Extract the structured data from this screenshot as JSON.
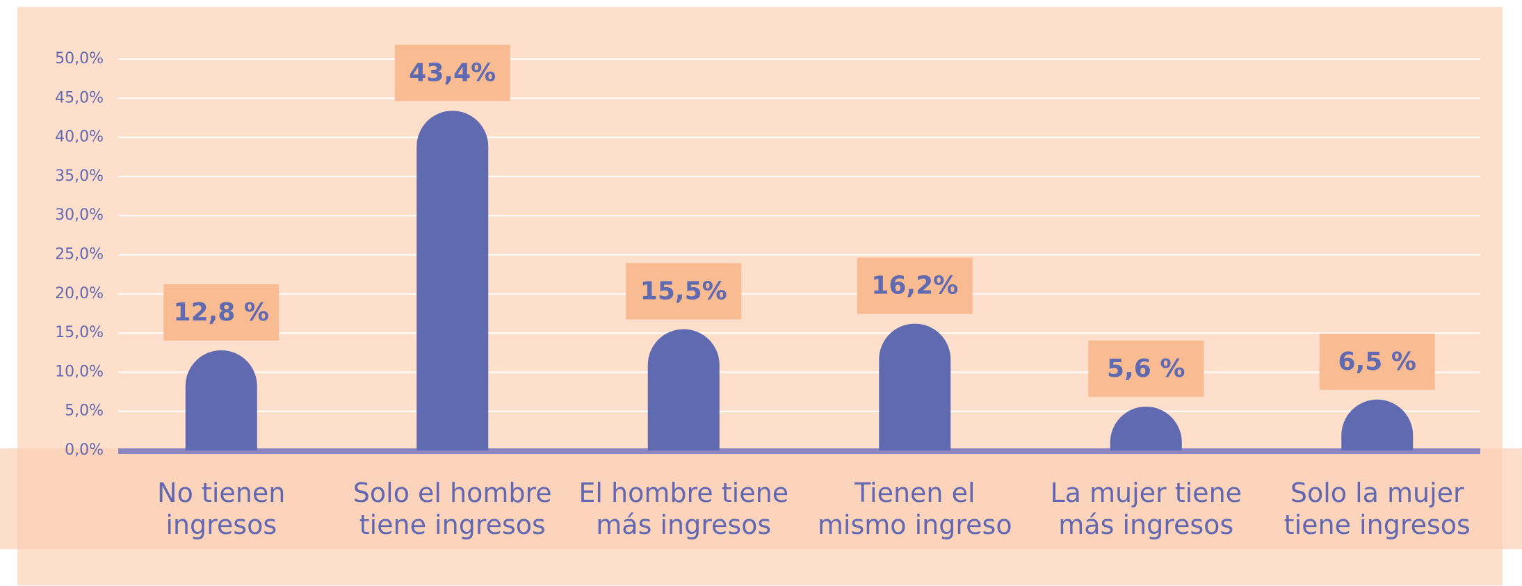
{
  "chart_data": {
    "type": "bar",
    "categories": [
      "No tienen\ningresos",
      "Solo el hombre\ntiene ingresos",
      "El hombre tiene\nmás ingresos",
      "Tienen el\nmismo ingreso",
      "La mujer tiene\nmás ingresos",
      "Solo la mujer\ntiene ingresos"
    ],
    "values": [
      12.8,
      43.4,
      15.5,
      16.2,
      5.6,
      6.5
    ],
    "value_labels": [
      "12,8 %",
      "43,4%",
      "15,5%",
      "16,2%",
      "5,6 %",
      "6,5 %"
    ],
    "color": "#5f6ab0",
    "ylim": [
      0,
      50
    ],
    "yticks": [
      {
        "value": 0,
        "label": "0,0%"
      },
      {
        "value": 5,
        "label": "5,0%"
      },
      {
        "value": 10,
        "label": "10,0%"
      },
      {
        "value": 15,
        "label": "15,0%"
      },
      {
        "value": 20,
        "label": "20,0%"
      },
      {
        "value": 25,
        "label": "25,0%"
      },
      {
        "value": 30,
        "label": "30,0%"
      },
      {
        "value": 35,
        "label": "35,0%"
      },
      {
        "value": 40,
        "label": "40,0%"
      },
      {
        "value": 45,
        "label": "45,0%"
      },
      {
        "value": 50,
        "label": "50,0%"
      }
    ],
    "grid": true
  }
}
